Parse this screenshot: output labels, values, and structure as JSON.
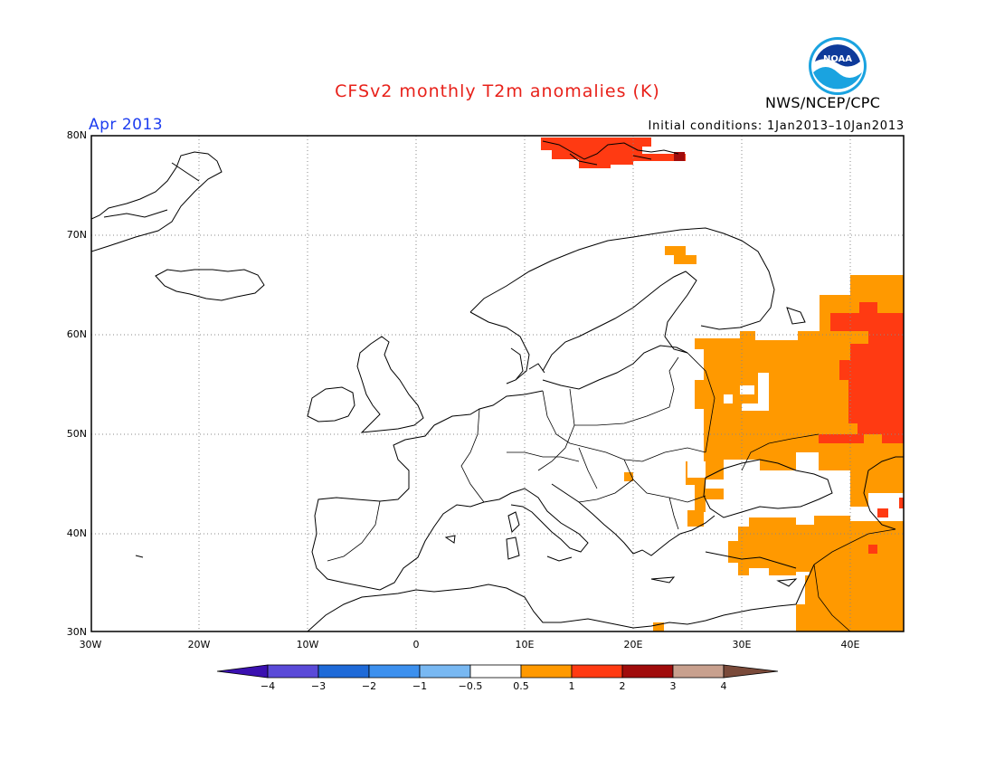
{
  "header": {
    "title": "CFSv2 monthly T2m anomalies (K)",
    "period": "Apr 2013",
    "initial_conditions": "Initial conditions: 1Jan2013–10Jan2013",
    "agency": "NWS/NCEP/CPC",
    "logo_text": "NOAA"
  },
  "map": {
    "lat_labels": [
      "80N",
      "70N",
      "60N",
      "50N",
      "40N",
      "30N"
    ],
    "lon_labels": [
      "30W",
      "20W",
      "10W",
      "0",
      "10E",
      "20E",
      "30E",
      "40E"
    ],
    "extent": {
      "lon": [
        -30,
        45
      ],
      "lat": [
        30,
        80
      ]
    },
    "grid": "dotted every 10 degrees",
    "anomaly_regions": [
      {
        "name": "Svalbard",
        "category": "1 to 2",
        "color": "#ff3a12"
      },
      {
        "name": "Northern Finland",
        "category": "0.5 to 1",
        "color": "#ff9900"
      },
      {
        "name": "Western Russia / Ukraine",
        "category": "0.5 to 1",
        "color": "#ff9900"
      },
      {
        "name": "Central Russia",
        "category": "1 to 2",
        "color": "#ff3a12"
      },
      {
        "name": "Turkey / Caucasus",
        "category": "0.5 to 1",
        "color": "#ff9900"
      },
      {
        "name": "Levant / Iraq",
        "category": "0.5 to 1",
        "color": "#ff9900"
      }
    ]
  },
  "colorbar": {
    "ticks": [
      "−4",
      "−3",
      "−2",
      "−1",
      "−0.5",
      "0.5",
      "1",
      "2",
      "3",
      "4"
    ],
    "colors": [
      "#3a10b0",
      "#5a4ad8",
      "#1e6ad8",
      "#3c90ee",
      "#78b8f2",
      "#ffffff",
      "#ff9900",
      "#ff3a12",
      "#a00c0c",
      "#c8a08e",
      "#7a4a3a"
    ]
  }
}
